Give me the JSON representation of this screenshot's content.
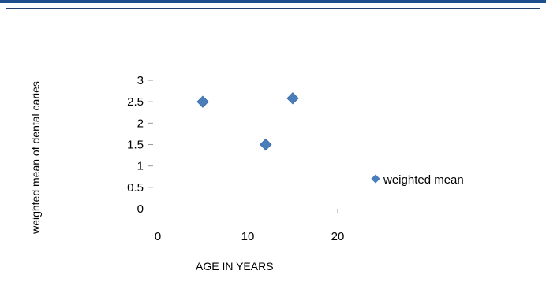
{
  "chart_data": {
    "type": "scatter",
    "title": "",
    "xlabel": "AGE IN YEARS",
    "ylabel": "weighted mean of dental caries",
    "xlim": [
      0,
      20
    ],
    "ylim": [
      0,
      3
    ],
    "x_ticks": [
      "0",
      "10",
      "20"
    ],
    "y_ticks": [
      "0",
      "0.5",
      "1",
      "1.5",
      "2",
      "2.5",
      "3"
    ],
    "series": [
      {
        "name": "weighted mean",
        "color": "#4a7ebb",
        "marker": "diamond",
        "points": [
          {
            "x": 5,
            "y": 2.5
          },
          {
            "x": 12,
            "y": 1.5
          },
          {
            "x": 15,
            "y": 2.58
          }
        ]
      }
    ],
    "grid": false,
    "legend_position": "right"
  }
}
